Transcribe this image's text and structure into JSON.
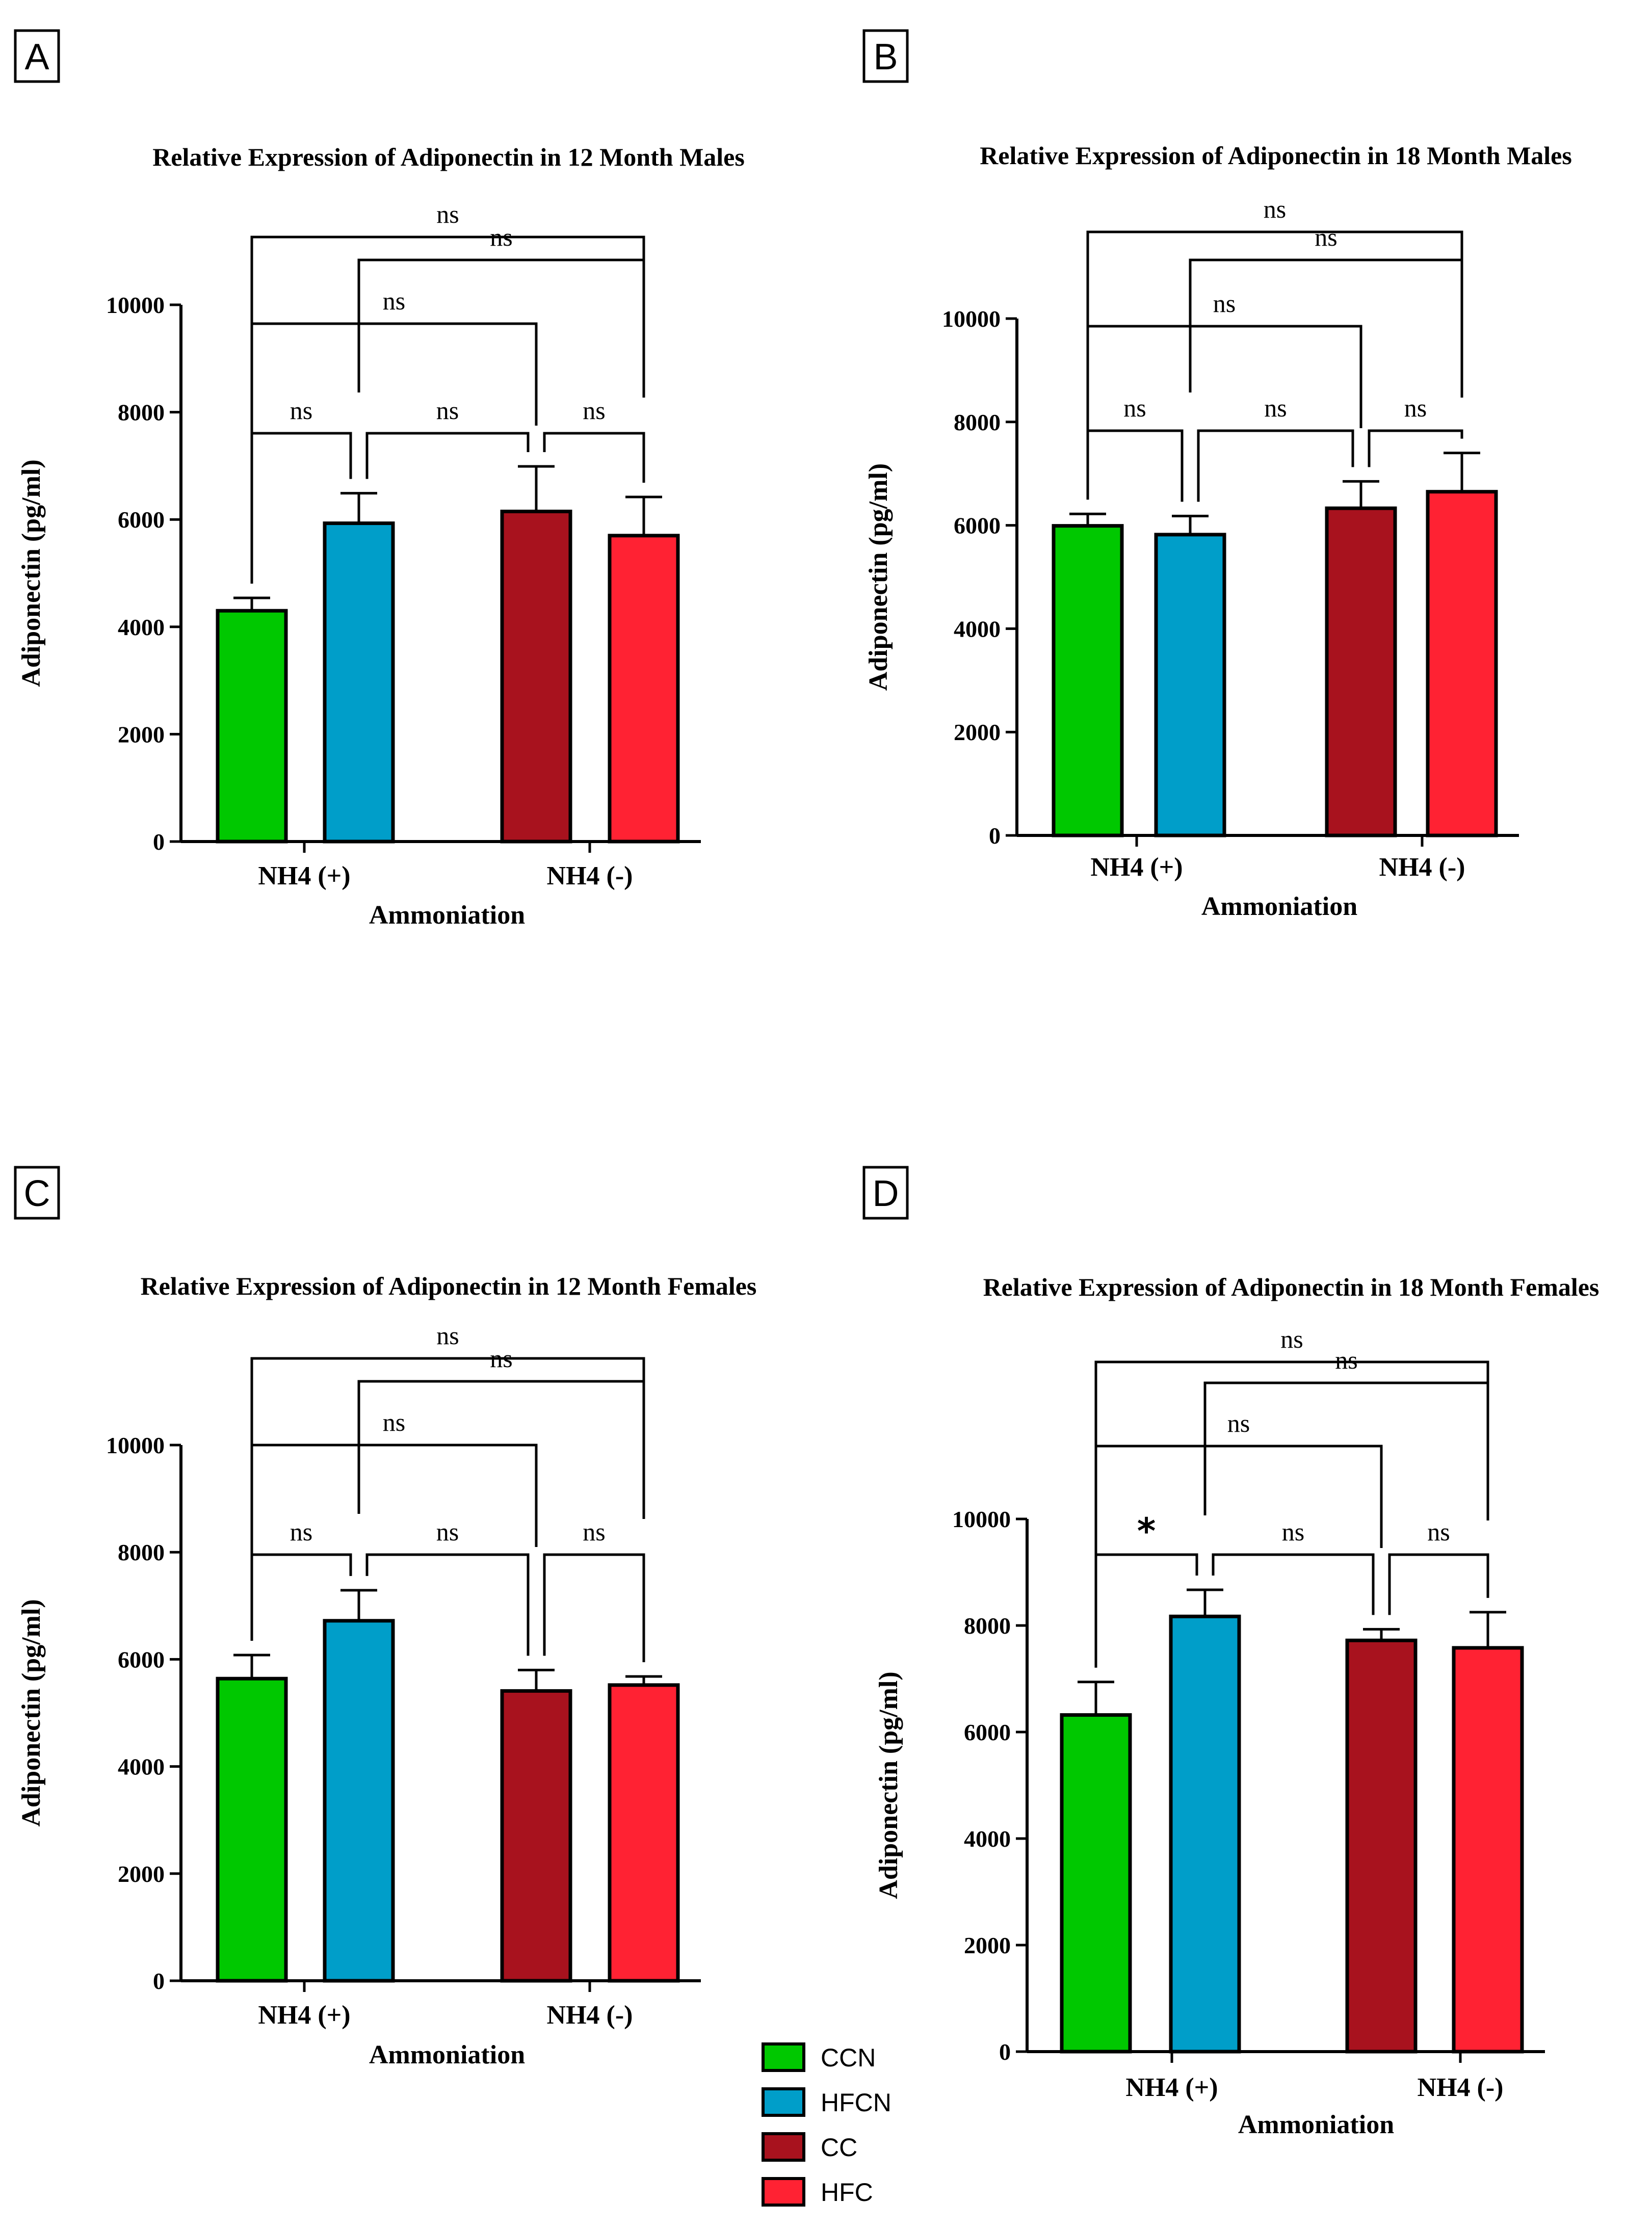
{
  "chart_data": [
    {
      "panel": "A",
      "type": "bar",
      "title": "Relative Expression of Adiponectin in 12 Month Males",
      "xlabel": "Ammoniation",
      "ylabel": "Adiponectin (pg/ml)",
      "ylim": [
        0,
        10000
      ],
      "yticks": [
        0,
        2000,
        4000,
        6000,
        8000,
        10000
      ],
      "categories": [
        "NH4 (+)",
        "NH4 (-)"
      ],
      "bars": [
        {
          "group": "CCN",
          "category": "NH4 (+)",
          "value": 4300,
          "error": 240
        },
        {
          "group": "HFCN",
          "category": "NH4 (+)",
          "value": 5930,
          "error": 560
        },
        {
          "group": "CC",
          "category": "NH4 (-)",
          "value": 6150,
          "error": 840
        },
        {
          "group": "HFC",
          "category": "NH4 (-)",
          "value": 5700,
          "error": 720
        }
      ],
      "comparisons": [
        {
          "from": "CCN",
          "to": "HFCN",
          "label": "ns"
        },
        {
          "from": "HFCN",
          "to": "CC",
          "label": "ns"
        },
        {
          "from": "CC",
          "to": "HFC",
          "label": "ns"
        },
        {
          "from": "CCN",
          "to": "CC",
          "label": "ns"
        },
        {
          "from": "HFCN",
          "to": "HFC",
          "label": "ns"
        },
        {
          "from": "CCN",
          "to": "HFC",
          "label": "ns"
        }
      ]
    },
    {
      "panel": "B",
      "type": "bar",
      "title": "Relative Expression of Adiponectin in 18 Month Males",
      "xlabel": "Ammoniation",
      "ylabel": "Adiponectin (pg/ml)",
      "ylim": [
        0,
        10000
      ],
      "yticks": [
        0,
        2000,
        4000,
        6000,
        8000,
        10000
      ],
      "categories": [
        "NH4 (+)",
        "NH4 (-)"
      ],
      "bars": [
        {
          "group": "CCN",
          "category": "NH4 (+)",
          "value": 5990,
          "error": 230
        },
        {
          "group": "HFCN",
          "category": "NH4 (+)",
          "value": 5820,
          "error": 360
        },
        {
          "group": "CC",
          "category": "NH4 (-)",
          "value": 6330,
          "error": 520
        },
        {
          "group": "HFC",
          "category": "NH4 (-)",
          "value": 6650,
          "error": 750
        }
      ],
      "comparisons": [
        {
          "from": "CCN",
          "to": "HFCN",
          "label": "ns"
        },
        {
          "from": "HFCN",
          "to": "CC",
          "label": "ns"
        },
        {
          "from": "CC",
          "to": "HFC",
          "label": "ns"
        },
        {
          "from": "CCN",
          "to": "CC",
          "label": "ns"
        },
        {
          "from": "HFCN",
          "to": "HFC",
          "label": "ns"
        },
        {
          "from": "CCN",
          "to": "HFC",
          "label": "ns"
        }
      ]
    },
    {
      "panel": "C",
      "type": "bar",
      "title": "Relative Expression of Adiponectin in 12 Month Females",
      "xlabel": "Ammoniation",
      "ylabel": "Adiponectin (pg/ml)",
      "ylim": [
        0,
        10000
      ],
      "yticks": [
        0,
        2000,
        4000,
        6000,
        8000,
        10000
      ],
      "categories": [
        "NH4 (+)",
        "NH4 (-)"
      ],
      "bars": [
        {
          "group": "CCN",
          "category": "NH4 (+)",
          "value": 5640,
          "error": 440
        },
        {
          "group": "HFCN",
          "category": "NH4 (+)",
          "value": 6720,
          "error": 570
        },
        {
          "group": "CC",
          "category": "NH4 (-)",
          "value": 5410,
          "error": 390
        },
        {
          "group": "HFC",
          "category": "NH4 (-)",
          "value": 5520,
          "error": 160
        }
      ],
      "comparisons": [
        {
          "from": "CCN",
          "to": "HFCN",
          "label": "ns"
        },
        {
          "from": "HFCN",
          "to": "CC",
          "label": "ns"
        },
        {
          "from": "CC",
          "to": "HFC",
          "label": "ns"
        },
        {
          "from": "CCN",
          "to": "CC",
          "label": "ns"
        },
        {
          "from": "HFCN",
          "to": "HFC",
          "label": "ns"
        },
        {
          "from": "CCN",
          "to": "HFC",
          "label": "ns"
        }
      ]
    },
    {
      "panel": "D",
      "type": "bar",
      "title": "Relative Expression of Adiponectin in 18 Month Females",
      "xlabel": "Ammoniation",
      "ylabel": "Adiponectin (pg/ml)",
      "ylim": [
        0,
        10000
      ],
      "yticks": [
        0,
        2000,
        4000,
        6000,
        8000,
        10000
      ],
      "categories": [
        "NH4 (+)",
        "NH4 (-)"
      ],
      "bars": [
        {
          "group": "CCN",
          "category": "NH4 (+)",
          "value": 6320,
          "error": 620
        },
        {
          "group": "HFCN",
          "category": "NH4 (+)",
          "value": 8170,
          "error": 500
        },
        {
          "group": "CC",
          "category": "NH4 (-)",
          "value": 7720,
          "error": 210
        },
        {
          "group": "HFC",
          "category": "NH4 (-)",
          "value": 7580,
          "error": 670
        }
      ],
      "comparisons": [
        {
          "from": "CCN",
          "to": "HFCN",
          "label": "*"
        },
        {
          "from": "HFCN",
          "to": "CC",
          "label": "ns"
        },
        {
          "from": "CC",
          "to": "HFC",
          "label": "ns"
        },
        {
          "from": "CCN",
          "to": "CC",
          "label": "ns"
        },
        {
          "from": "HFCN",
          "to": "HFC",
          "label": "ns"
        },
        {
          "from": "CCN",
          "to": "HFC",
          "label": "ns"
        }
      ]
    }
  ],
  "legend": {
    "items": [
      {
        "label": "CCN",
        "color": "#00c800"
      },
      {
        "label": "HFCN",
        "color": "#009ec9"
      },
      {
        "label": "CC",
        "color": "#a8121e"
      },
      {
        "label": "HFC",
        "color": "#ff2233"
      }
    ]
  }
}
